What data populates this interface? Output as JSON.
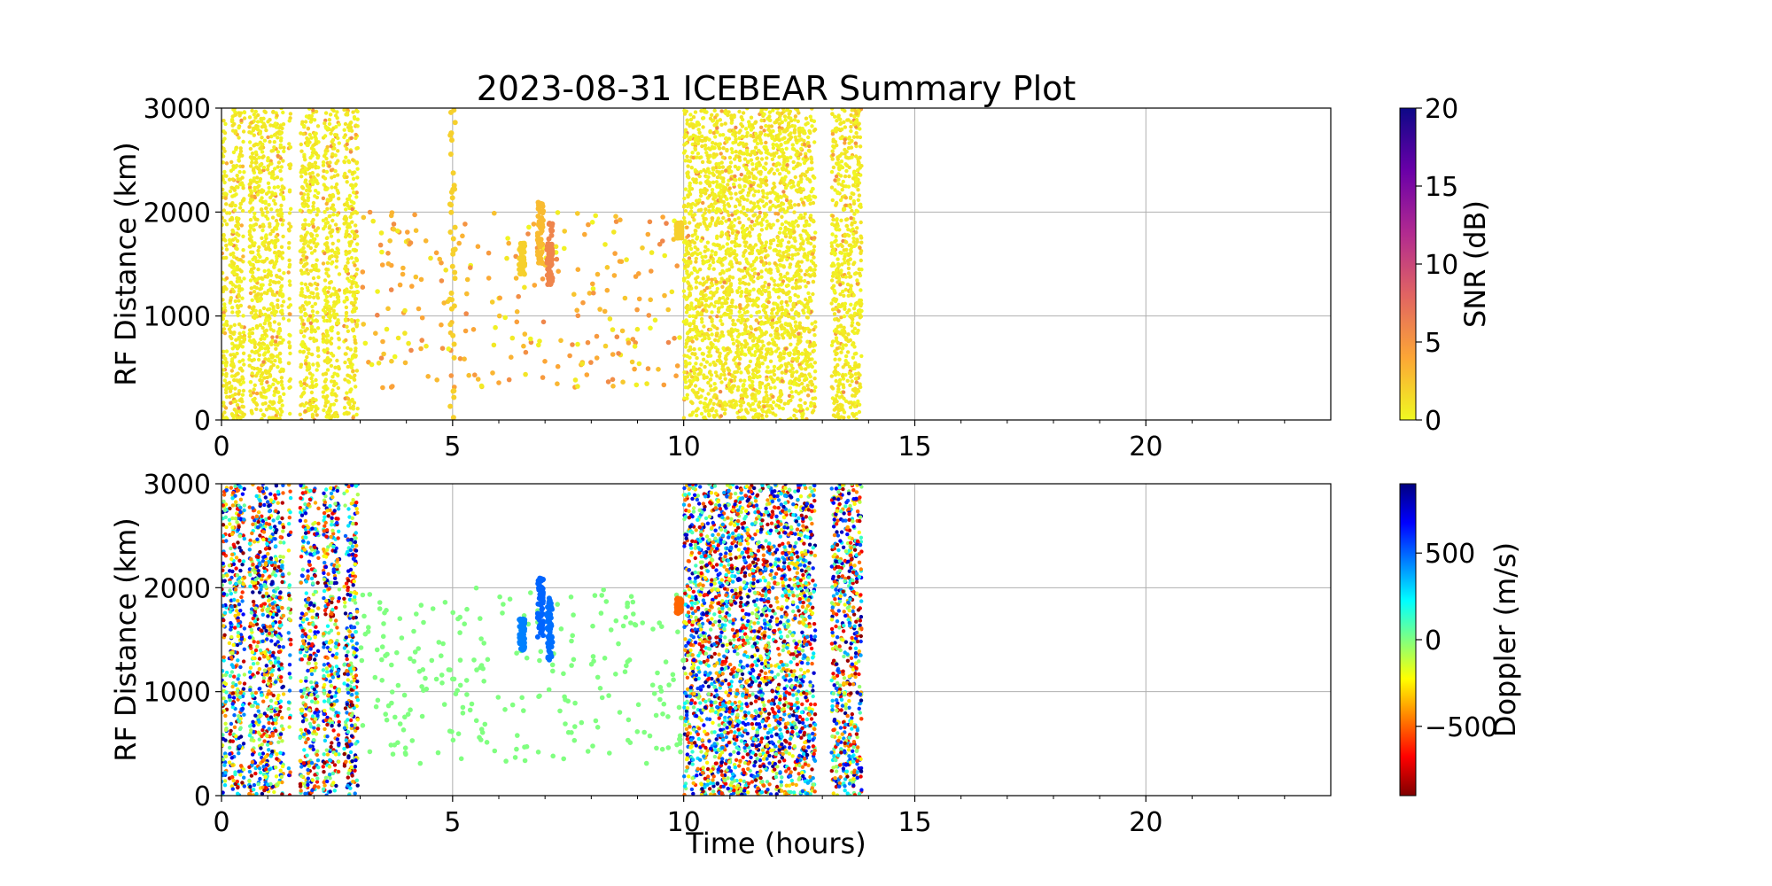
{
  "figure": {
    "title": "2023-08-31 ICEBEAR Summary Plot"
  },
  "chart_data": [
    {
      "type": "scatter",
      "panel": "top",
      "ylabel": "RF Distance (km)",
      "xlabel": "",
      "xlim": [
        0,
        24
      ],
      "ylim": [
        0,
        3000
      ],
      "xticks": [
        "0",
        "5",
        "10",
        "15",
        "20"
      ],
      "yticks": [
        "0",
        "1000",
        "2000",
        "3000"
      ],
      "grid": true,
      "color_by": "SNR (dB)",
      "colorbar": {
        "label": "SNR (dB)",
        "range": [
          0,
          20
        ],
        "ticks": [
          "0",
          "5",
          "10",
          "15",
          "20"
        ],
        "colormap": "plasma_r",
        "colors": [
          "#f0f921",
          "#fca636",
          "#e16462",
          "#b12a90",
          "#6a00a8",
          "#0d0887"
        ]
      },
      "dense_bands_hours": [
        [
          0.0,
          0.12
        ],
        [
          0.17,
          0.5
        ],
        [
          0.6,
          1.35
        ],
        [
          1.45,
          1.5
        ],
        [
          1.7,
          2.1
        ],
        [
          2.2,
          2.55
        ],
        [
          2.65,
          2.95
        ],
        [
          10.0,
          12.85
        ],
        [
          13.2,
          13.85
        ]
      ],
      "sparse_region_hours": [
        3.0,
        10.0
      ],
      "features": [
        {
          "time_h": 6.5,
          "range_km": [
            1400,
            1700
          ],
          "snr_db": 2
        },
        {
          "time_h": 6.9,
          "range_km": [
            1500,
            2100
          ],
          "snr_db": 3
        },
        {
          "time_h": 7.1,
          "range_km": [
            1300,
            1900
          ],
          "snr_db": 6
        },
        {
          "time_h": 9.9,
          "range_km": [
            1750,
            1900
          ],
          "snr_db": 2
        },
        {
          "time_h": 5.0,
          "range_km": [
            0,
            3000
          ],
          "snr_db": 2
        }
      ]
    },
    {
      "type": "scatter",
      "panel": "bottom",
      "ylabel": "RF Distance (km)",
      "xlabel": "Time (hours)",
      "xlim": [
        0,
        24
      ],
      "ylim": [
        0,
        3000
      ],
      "xticks": [
        "0",
        "5",
        "10",
        "15",
        "20"
      ],
      "yticks": [
        "0",
        "1000",
        "2000",
        "3000"
      ],
      "grid": true,
      "color_by": "Doppler (m/s)",
      "colorbar": {
        "label": "Doppler (m/s)",
        "range": [
          -900,
          900
        ],
        "ticks": [
          "−500",
          "0",
          "500"
        ],
        "tick_values": [
          -500,
          0,
          500
        ],
        "colormap": "jet_r",
        "colors": [
          "#800000",
          "#ff0000",
          "#ff8000",
          "#ffff00",
          "#80ff80",
          "#00ffff",
          "#0080ff",
          "#0000ff",
          "#000080"
        ]
      },
      "dense_bands_hours": [
        [
          0.0,
          0.12
        ],
        [
          0.17,
          0.5
        ],
        [
          0.6,
          1.35
        ],
        [
          1.45,
          1.5
        ],
        [
          1.7,
          2.1
        ],
        [
          2.2,
          2.55
        ],
        [
          2.65,
          2.95
        ],
        [
          10.0,
          12.85
        ],
        [
          13.2,
          13.85
        ]
      ],
      "sparse_region_hours": [
        3.0,
        10.0
      ],
      "sparse_doppler_ms": 0,
      "features": [
        {
          "time_h": 6.5,
          "range_km": [
            1400,
            1700
          ],
          "doppler_ms": 450
        },
        {
          "time_h": 6.9,
          "range_km": [
            1500,
            2100
          ],
          "doppler_ms": 500
        },
        {
          "time_h": 7.1,
          "range_km": [
            1300,
            1900
          ],
          "doppler_ms": 480
        },
        {
          "time_h": 9.9,
          "range_km": [
            1750,
            1900
          ],
          "doppler_ms": -500
        }
      ]
    }
  ]
}
